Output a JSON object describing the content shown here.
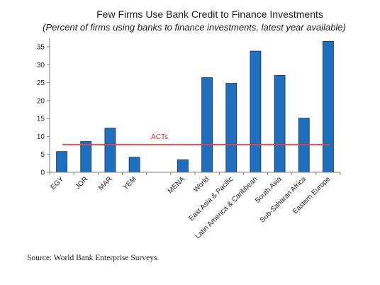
{
  "chart_data": {
    "type": "bar",
    "title": "Few Firms Use Bank Credit to Finance Investments",
    "subtitle": "(Percent of firms using banks to finance investments, latest year available)",
    "categories": [
      "EGY",
      "JOR",
      "MAR",
      "YEM",
      "",
      "MENA",
      "World",
      "East Asia & Pacific",
      "Latin America & Caribbean",
      "South Asia",
      "Sub-Saharan Africa",
      "Eastern Europe"
    ],
    "values": [
      5.8,
      8.6,
      12.3,
      4.2,
      null,
      3.5,
      26.4,
      24.8,
      33.8,
      27.0,
      15.1,
      36.5
    ],
    "ylim": [
      0,
      35
    ],
    "yticks": [
      0,
      5,
      10,
      15,
      20,
      25,
      30,
      35
    ],
    "xlabel": "",
    "ylabel": "",
    "reference_line": {
      "label": "ACTs",
      "value": 7.7,
      "color": "#e8433c"
    },
    "bar_color": "#1f6fbf",
    "bar_border_color": "#1b2f5e",
    "grid": false,
    "legend": "none"
  },
  "source": "Source: World Bank Enterprise Surveys."
}
